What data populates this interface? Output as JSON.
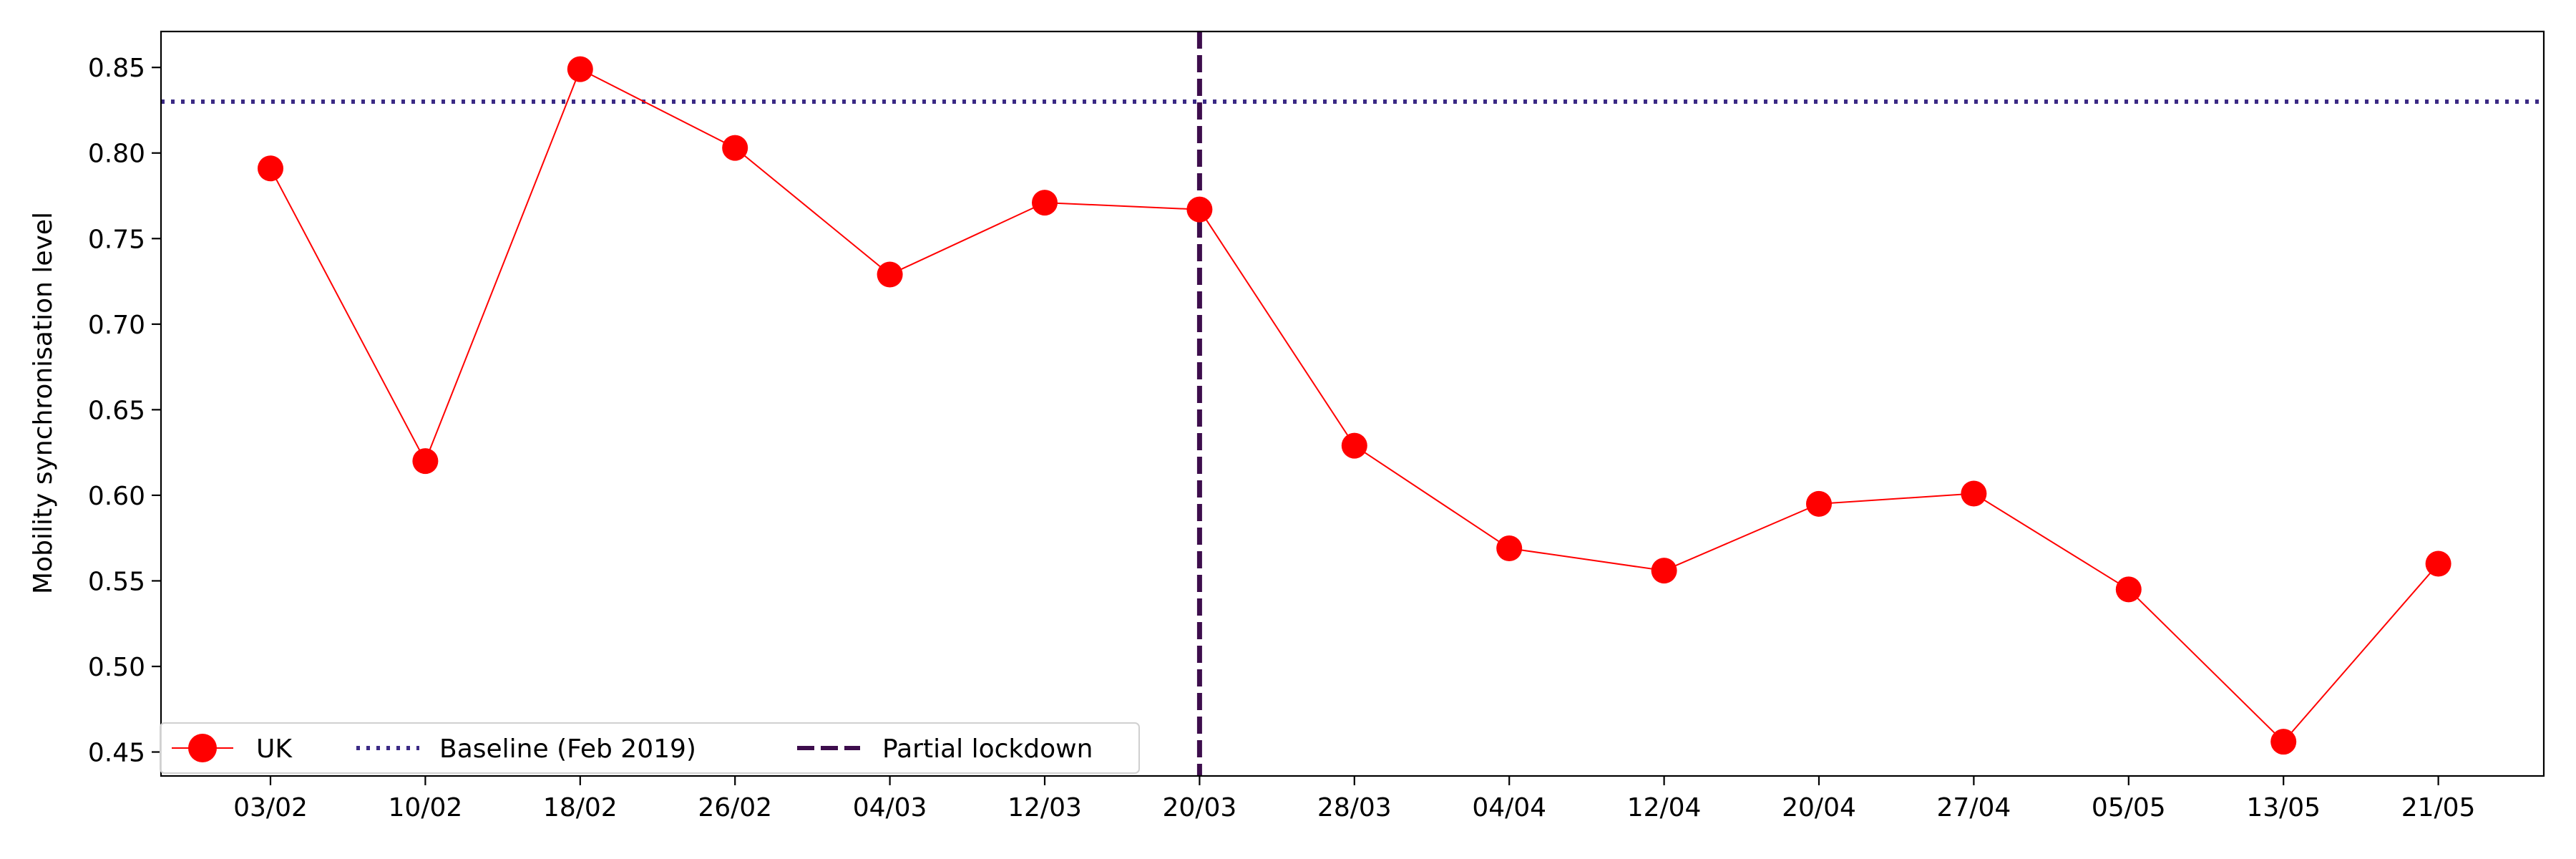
{
  "chart_data": {
    "type": "line",
    "title": "",
    "xlabel": "",
    "ylabel": "Mobility synchronisation level",
    "categories": [
      "03/02",
      "10/02",
      "18/02",
      "26/02",
      "04/03",
      "12/03",
      "20/03",
      "28/03",
      "04/04",
      "12/04",
      "20/04",
      "27/04",
      "05/05",
      "13/05",
      "21/05"
    ],
    "series": [
      {
        "name": "UK",
        "values": [
          0.791,
          0.62,
          0.849,
          0.803,
          0.729,
          0.771,
          0.767,
          0.629,
          0.569,
          0.556,
          0.595,
          0.601,
          0.545,
          0.456,
          0.56
        ],
        "color": "#ff0000"
      }
    ],
    "baseline": {
      "label": "Baseline (Feb 2019)",
      "value": 0.83,
      "color": "#3b2a85",
      "style": "dotted"
    },
    "event": {
      "label": "Partial lockdown",
      "at_category": "20/03",
      "color": "#3d0d4c",
      "style": "dashed"
    },
    "ylim": [
      0.436,
      0.871
    ],
    "yticks": [
      "0.45",
      "0.50",
      "0.55",
      "0.60",
      "0.65",
      "0.70",
      "0.75",
      "0.80",
      "0.85"
    ],
    "grid": false,
    "legend_position": "bottom-left"
  }
}
